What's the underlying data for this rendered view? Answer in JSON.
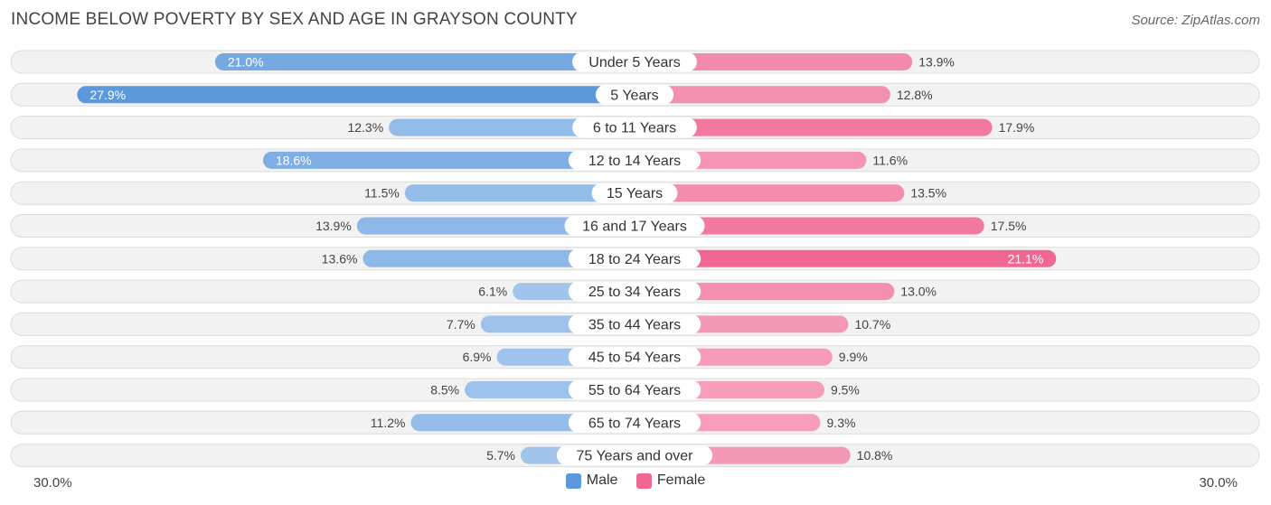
{
  "chart_data": {
    "type": "bar",
    "orientation": "diverging-horizontal",
    "title": "INCOME BELOW POVERTY BY SEX AND AGE IN GRAYSON COUNTY",
    "source": "Source: ZipAtlas.com",
    "categories": [
      "Under 5 Years",
      "5 Years",
      "6 to 11 Years",
      "12 to 14 Years",
      "15 Years",
      "16 and 17 Years",
      "18 to 24 Years",
      "25 to 34 Years",
      "35 to 44 Years",
      "45 to 54 Years",
      "55 to 64 Years",
      "65 to 74 Years",
      "75 Years and over"
    ],
    "series": [
      {
        "name": "Male",
        "values": [
          21.0,
          27.9,
          12.3,
          18.6,
          11.5,
          13.9,
          13.6,
          6.1,
          7.7,
          6.9,
          8.5,
          11.2,
          5.7
        ]
      },
      {
        "name": "Female",
        "values": [
          13.9,
          12.8,
          17.9,
          11.6,
          13.5,
          17.5,
          21.1,
          13.0,
          10.7,
          9.9,
          9.5,
          9.3,
          10.8
        ]
      }
    ],
    "value_labels": {
      "male": [
        "21.0%",
        "27.9%",
        "12.3%",
        "18.6%",
        "11.5%",
        "13.9%",
        "13.6%",
        "6.1%",
        "7.7%",
        "6.9%",
        "8.5%",
        "11.2%",
        "5.7%"
      ],
      "female": [
        "13.9%",
        "12.8%",
        "17.9%",
        "11.6%",
        "13.5%",
        "17.5%",
        "21.1%",
        "13.0%",
        "10.7%",
        "9.9%",
        "9.5%",
        "9.3%",
        "10.8%"
      ]
    },
    "axis_min_label": "30.0%",
    "axis_max_label": "30.0%",
    "xlim": [
      -30,
      30
    ],
    "legend": [
      "Male",
      "Female"
    ],
    "colors": {
      "male_strong": "#5b98dc",
      "male_light": "#a9c9ee",
      "female_strong": "#f06792",
      "female_light": "#f8b4c9",
      "row_bg": "#f2f2f2",
      "row_border": "#dcdcdc"
    }
  }
}
